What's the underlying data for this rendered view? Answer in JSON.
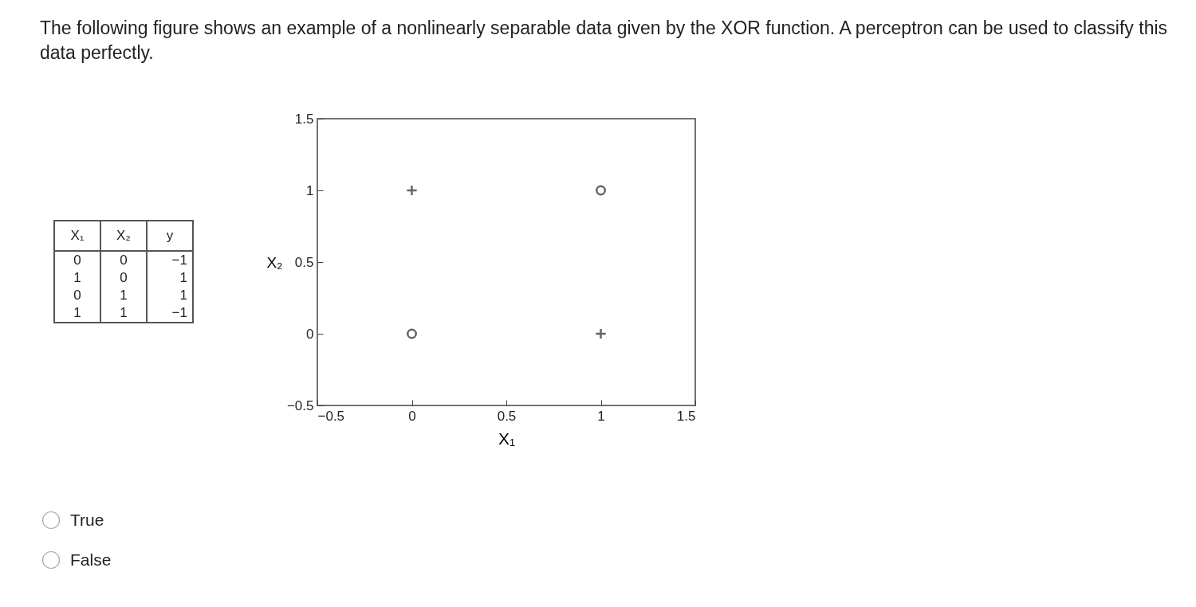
{
  "chart_data": [
    {
      "type": "other",
      "annotations": [
        "X₁",
        "X₂",
        "y",
        "0",
        "0",
        "−1",
        "1",
        "0",
        "1",
        "0",
        "1",
        "1",
        "1",
        "1",
        "−1"
      ]
    },
    {
      "type": "scatter",
      "title": "The following figure shows an example of a nonlinearly separable data given by the XOR function. A perceptron can be used to classify this data perfectly.",
      "xlabel": "X₁",
      "ylabel": "X₂",
      "x": [
        0,
        1
      ],
      "series": [
        {
          "color": "#222222",
          "marker": "cross",
          "values": [
            1,
            0
          ]
        },
        {
          "color": "#222222",
          "marker": "circle",
          "values": [
            0,
            1
          ]
        }
      ],
      "xlim": [
        -0.5,
        1.5
      ],
      "xticks": [
        -0.5,
        0,
        0.5,
        1,
        1.5
      ],
      "ylim": [
        -0.5,
        1.5
      ],
      "yticks": [
        -0.5,
        0,
        0.5,
        1,
        1.5
      ],
      "annotations": [
        "True",
        "False"
      ]
    }
  ]
}
